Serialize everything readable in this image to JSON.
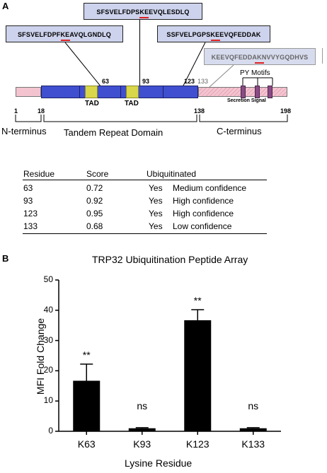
{
  "panel_a": {
    "letter": "A",
    "peptides": [
      {
        "sequence": "SFSVELFDPSKEEVQLESDLQ"
      },
      {
        "sequence": "SFSVELFDPFKEAVQLGNDLQ"
      },
      {
        "sequence": "SSFVELPGPSKEEVQFEDDAK"
      },
      {
        "sequence": "KEEVQFEDDAKNVVYGQDHVS"
      }
    ],
    "site_labels": [
      "63",
      "93",
      "123",
      "133"
    ],
    "domain_labels": {
      "tad1": "TAD",
      "tad2": "TAD",
      "py_motifs": "PY Motifs",
      "secretion": "Secretion Signal"
    },
    "positions": [
      "1",
      "18",
      "138",
      "198"
    ],
    "regions": [
      "N-terminus",
      "Tandem Repeat Domain",
      "C-terminus"
    ],
    "colors": {
      "repeat_domain": "#3f4fcf",
      "tad": "#d8d64a",
      "terminus": "#f3c4d0",
      "peptide_box": "#cdd3ec",
      "ubiquitination_mark": "#e0201f"
    },
    "table": {
      "headers": [
        "Residue",
        "Score",
        "Ubiquitinated"
      ],
      "rows": [
        {
          "residue": "63",
          "score": "0.72",
          "ubiquitinated": "Yes",
          "confidence": "Medium confidence"
        },
        {
          "residue": "93",
          "score": "0.92",
          "ubiquitinated": "Yes",
          "confidence": "High confidence"
        },
        {
          "residue": "123",
          "score": "0.95",
          "ubiquitinated": "Yes",
          "confidence": "High confidence"
        },
        {
          "residue": "133",
          "score": "0.68",
          "ubiquitinated": "Yes",
          "confidence": "Low confidence"
        }
      ]
    }
  },
  "panel_b": {
    "letter": "B"
  },
  "chart_data": {
    "type": "bar",
    "title": "TRP32 Ubiquitination Peptide Array",
    "xlabel": "Lysine Residue",
    "ylabel": "MFI Fold Change",
    "categories": [
      "K63",
      "K93",
      "K123",
      "K133"
    ],
    "values": [
      16.7,
      1.0,
      36.7,
      1.0
    ],
    "errors": [
      5.5,
      0.2,
      3.5,
      0.2
    ],
    "annotations": [
      "**",
      "ns",
      "**",
      "ns"
    ],
    "ylim": [
      0,
      50
    ],
    "yticks": [
      "0",
      "10",
      "20",
      "30",
      "40",
      "50"
    ],
    "bar_color": "#000000",
    "grid": false
  }
}
